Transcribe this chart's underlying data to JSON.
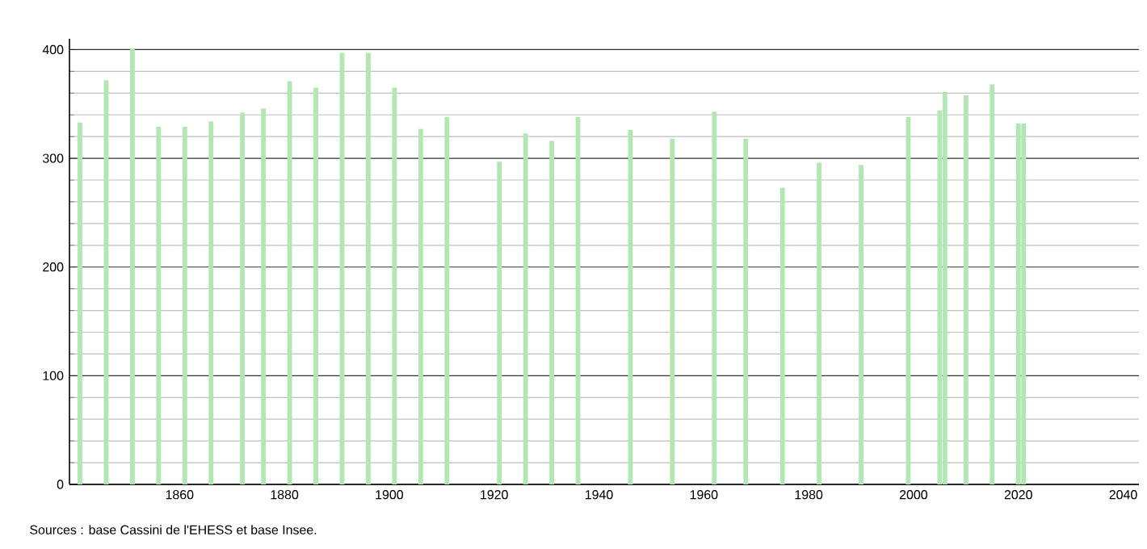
{
  "chart_data": {
    "type": "bar",
    "x": [
      1841,
      1846,
      1851,
      1856,
      1861,
      1866,
      1872,
      1876,
      1881,
      1886,
      1891,
      1896,
      1901,
      1906,
      1911,
      1921,
      1926,
      1931,
      1936,
      1946,
      1954,
      1962,
      1968,
      1975,
      1982,
      1990,
      1999,
      2005,
      2006,
      2010,
      2015,
      2020,
      2021
    ],
    "values": [
      333,
      372,
      401,
      329,
      329,
      334,
      342,
      346,
      371,
      365,
      397,
      397,
      365,
      327,
      338,
      297,
      323,
      316,
      338,
      326,
      318,
      343,
      318,
      273,
      296,
      294,
      338,
      344,
      361,
      358,
      368,
      332,
      332
    ],
    "color": "#b3e6b3",
    "xlim": [
      1839,
      2043
    ],
    "xticks": [
      1860,
      1880,
      1900,
      1920,
      1940,
      1960,
      1980,
      2000,
      2020,
      2040
    ],
    "ylim": [
      0,
      410
    ],
    "yticks": [
      0,
      100,
      200,
      300,
      400
    ],
    "grid": "y",
    "annotations": [
      "Sources : base Cassini de l'EHESS et base Insee."
    ]
  }
}
